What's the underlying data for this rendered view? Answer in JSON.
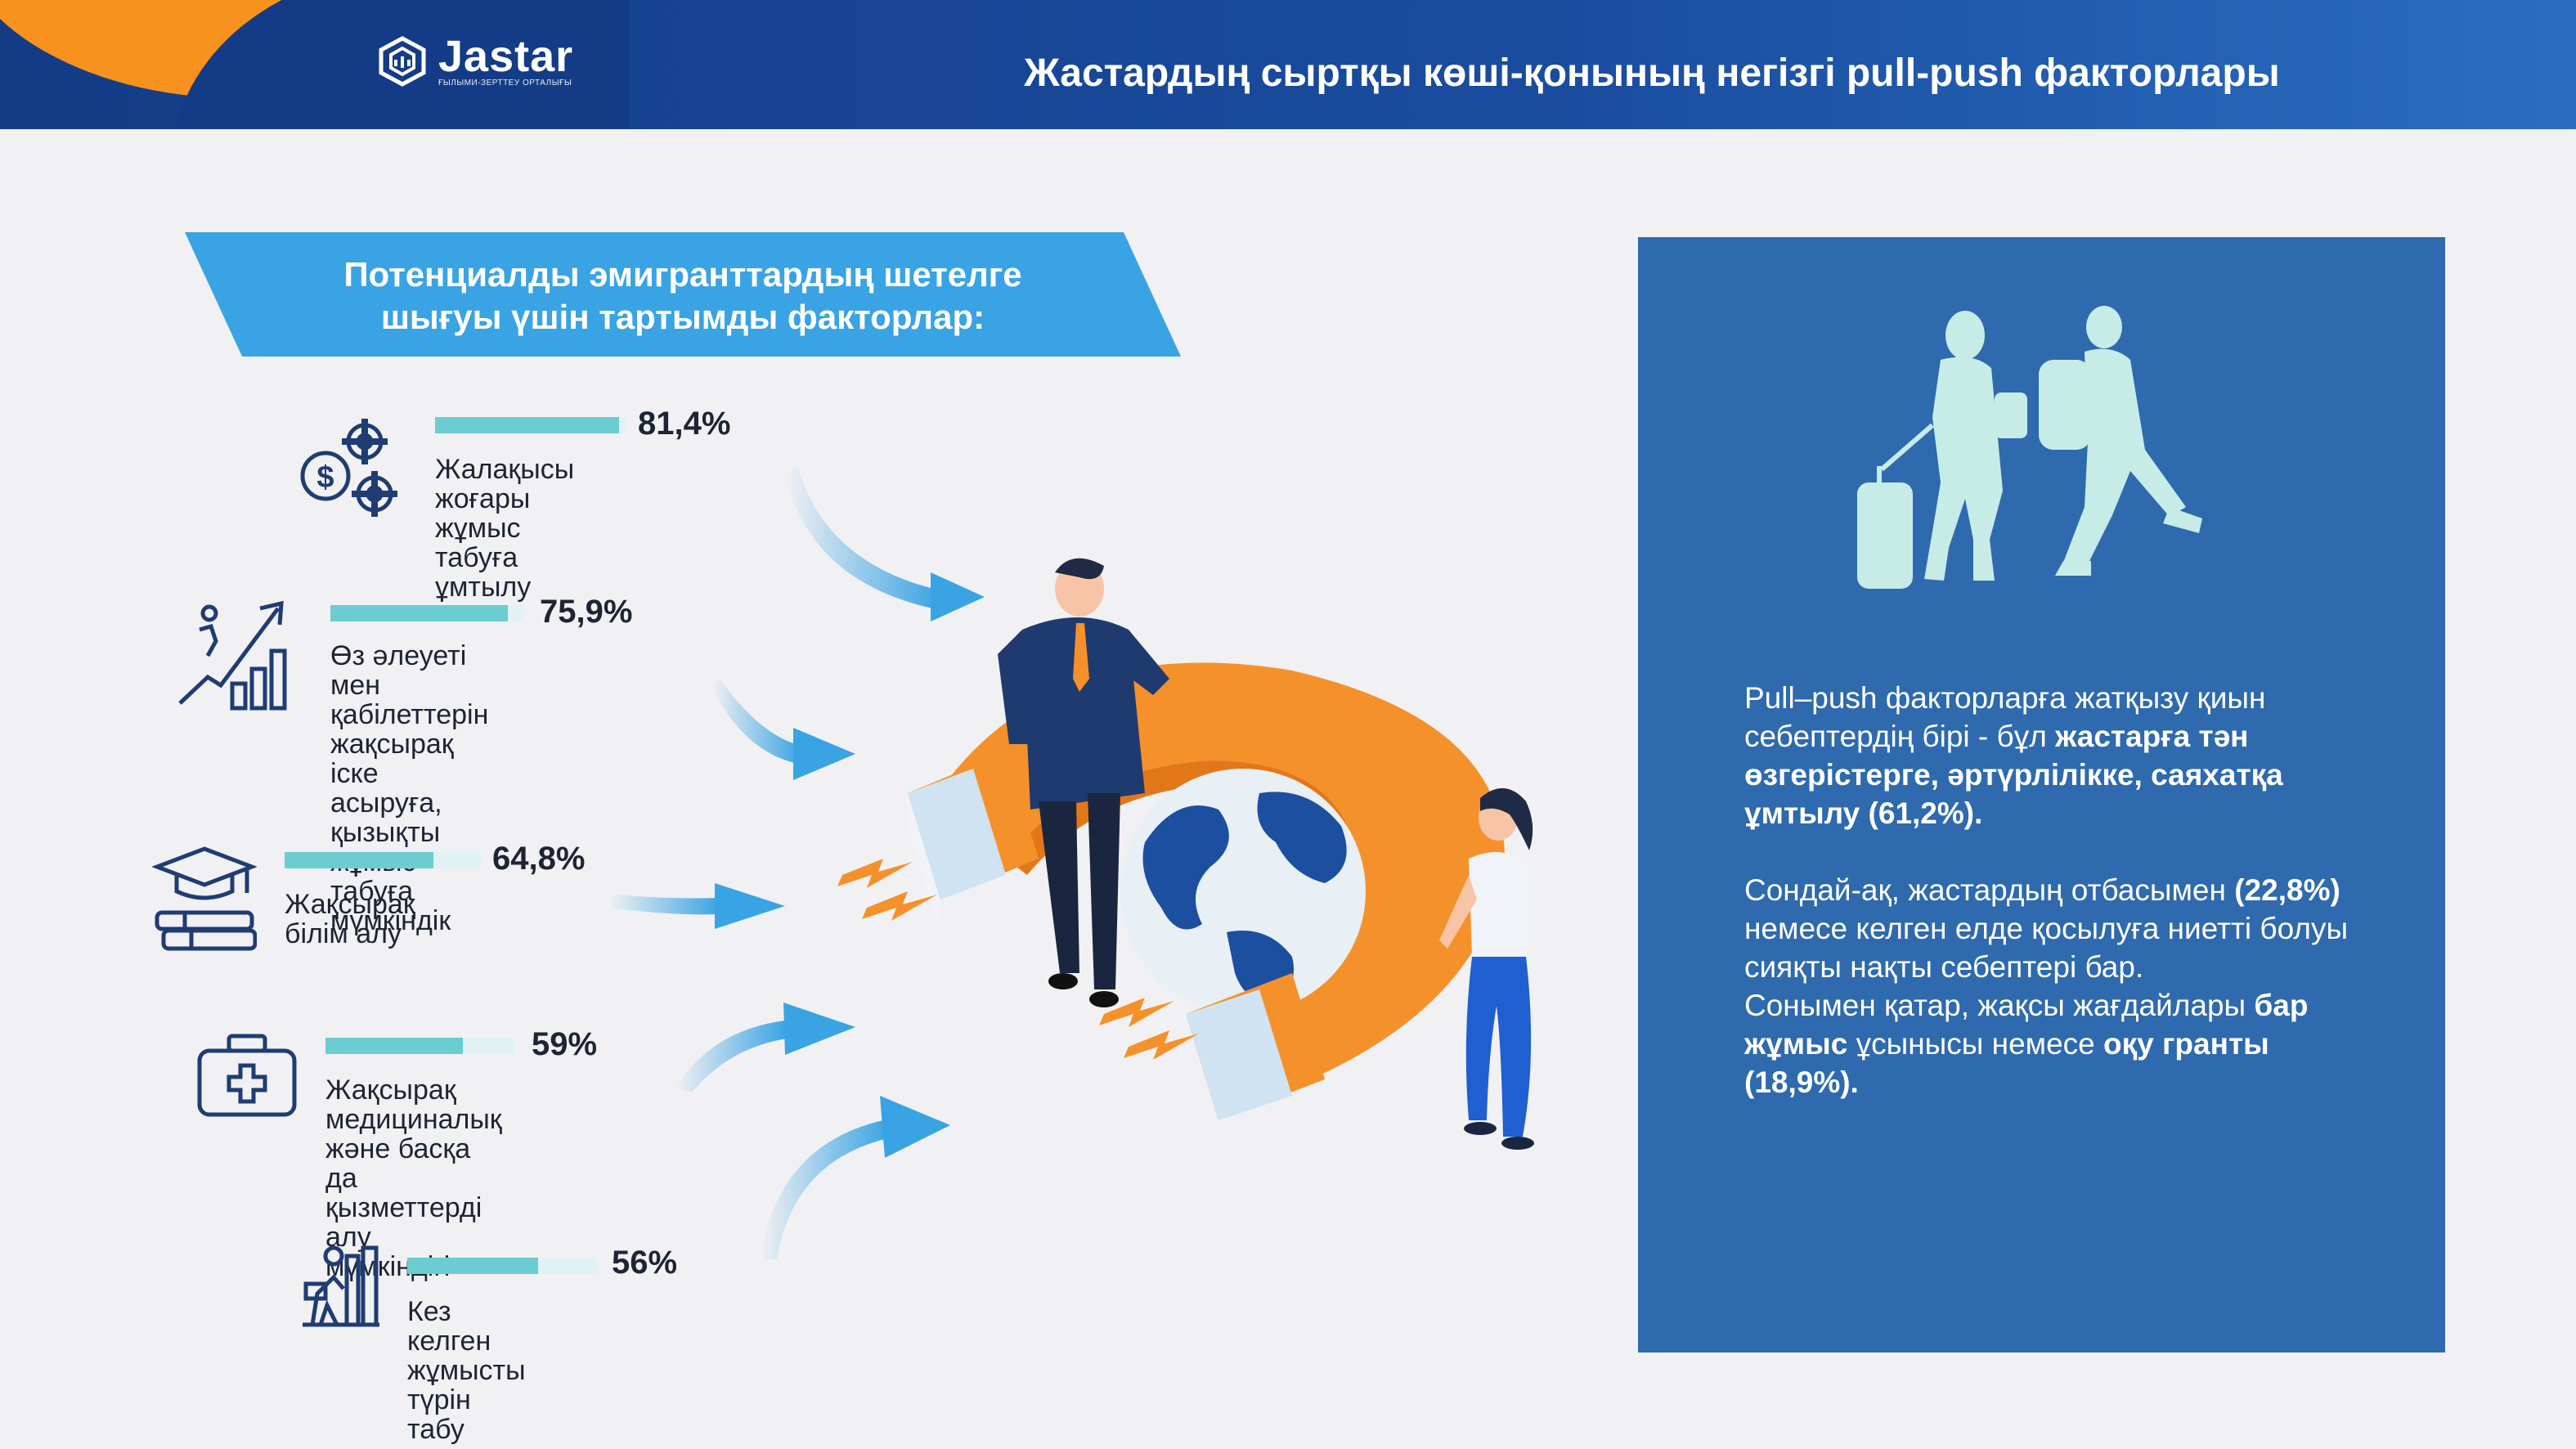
{
  "header": {
    "logo_name": "Jastar",
    "logo_sub": "ҒЫЛЫМИ-ЗЕРТТЕУ ОРТАЛЫҒЫ",
    "title": "Жастардың сыртқы көші-қонының негізгі pull-push факторлары"
  },
  "banner": {
    "line1": "Потенциалды эмигранттардың шетелге",
    "line2": "шығуы үшін тартымды факторлар:"
  },
  "factors": [
    {
      "percent_label": "81,4%",
      "value": 81.4,
      "line1": "Жалақысы жоғары",
      "line2": "жұмыс табуға ұмтылу",
      "line3": "",
      "line4": "",
      "line5": "",
      "icon": "gears-money-icon"
    },
    {
      "percent_label": "75,9%",
      "value": 75.9,
      "line1": "Өз әлеуеті мен",
      "line2": "қабілеттерін",
      "line3": "жақсырақ іске асыруға,",
      "line4": "қызықты жұмыс",
      "line5": "табуға мүмкіндік",
      "icon": "career-growth-icon"
    },
    {
      "percent_label": "64,8%",
      "value": 64.8,
      "line1": "Жақсырақ",
      "line2": "білім алу",
      "line3": "",
      "line4": "",
      "line5": "",
      "icon": "graduation-books-icon"
    },
    {
      "percent_label": "59%",
      "value": 59,
      "line1": "Жақсырақ",
      "line2": "медициналық",
      "line3": "және басқа да",
      "line4": "қызметтерді алу",
      "line5": "мүмкіндігі",
      "icon": "first-aid-kit-icon"
    },
    {
      "percent_label": "56%",
      "value": 56,
      "line1": "Кез келген жұмысты",
      "line2": "түрін табу",
      "line3": "",
      "line4": "",
      "line5": "",
      "icon": "worker-chart-icon"
    }
  ],
  "panel": {
    "p1_a": "Pull–push факторларға жатқызу қиын себептердің бірі - бұл ",
    "p1_b": "жастарға тән өзгерістерге, әртүрлілікке, саяхатқа ұмтылу (61,2%).",
    "p2_a": "Сондай-ақ, жастардың отбасымен ",
    "p2_b": "(22,8%)",
    "p2_c": " немесе келген елде қосылуға ниетті болуы сияқты нақты себептері бар.",
    "p3_a": "Сонымен қатар, жақсы жағдайлары ",
    "p3_b": "бар жұмыс",
    "p3_c": " ұсынысы немесе ",
    "p3_d": "оқу гранты (18,9%)."
  },
  "colors": {
    "header_blue": "#1a4c9e",
    "accent_orange": "#f7921e",
    "banner_blue": "#3aa3e3",
    "panel_blue": "#2e6aad",
    "bar_teal": "#6bcdd1",
    "silhouette": "#c7ece8",
    "navy_icon": "#1f3c73"
  }
}
